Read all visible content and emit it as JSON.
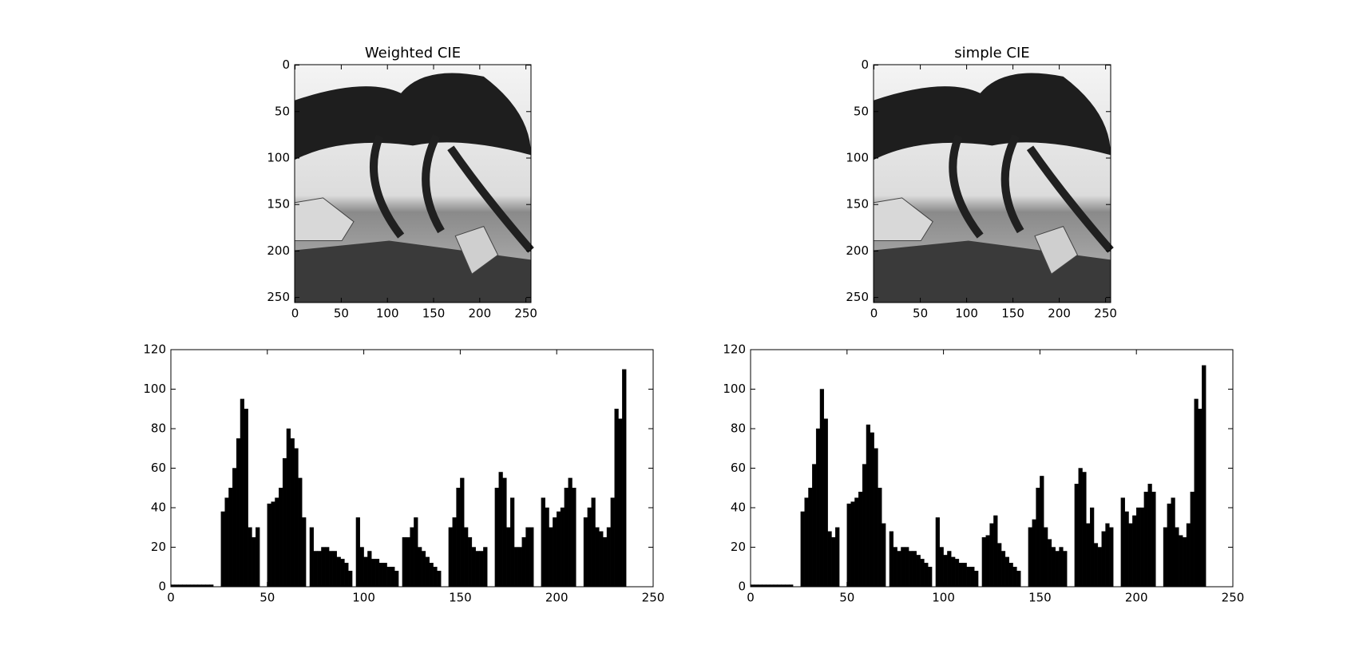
{
  "chart_data": [
    {
      "type": "image",
      "title": "Weighted CIE",
      "xlim": [
        -0.5,
        255.5
      ],
      "ylim": [
        255.5,
        -0.5
      ],
      "xticks": [
        0,
        50,
        100,
        150,
        200,
        250
      ],
      "yticks": [
        0,
        50,
        100,
        150,
        200,
        250
      ]
    },
    {
      "type": "image",
      "title": "simple CIE",
      "xlim": [
        -0.5,
        255.5
      ],
      "ylim": [
        255.5,
        -0.5
      ],
      "xticks": [
        0,
        50,
        100,
        150,
        200,
        250
      ],
      "yticks": [
        0,
        50,
        100,
        150,
        200,
        250
      ]
    },
    {
      "type": "histogram",
      "color": "#000000",
      "bins": [
        0,
        2,
        4,
        6,
        8,
        10,
        12,
        14,
        16,
        18,
        20,
        22,
        24,
        26,
        28,
        30,
        32,
        34,
        36,
        38,
        40,
        42,
        44,
        46,
        48,
        50,
        52,
        54,
        56,
        58,
        60,
        62,
        64,
        66,
        68,
        70,
        72,
        74,
        76,
        78,
        80,
        82,
        84,
        86,
        88,
        90,
        92,
        94,
        96,
        98,
        100,
        102,
        104,
        106,
        108,
        110,
        112,
        114,
        116,
        118,
        120,
        122,
        124,
        126,
        128,
        130,
        132,
        134,
        136,
        138,
        140,
        142,
        144,
        146,
        148,
        150,
        152,
        154,
        156,
        158,
        160,
        162,
        164,
        166,
        168,
        170,
        172,
        174,
        176,
        178,
        180,
        182,
        184,
        186,
        188,
        190,
        192,
        194,
        196,
        198,
        200,
        202,
        204,
        206,
        208,
        210,
        212,
        214,
        216,
        218,
        220,
        222,
        224,
        226,
        228,
        230,
        232,
        234,
        236
      ],
      "values": [
        1,
        1,
        1,
        1,
        1,
        1,
        1,
        1,
        1,
        1,
        1,
        0,
        0,
        38,
        45,
        50,
        60,
        75,
        95,
        90,
        30,
        25,
        30,
        0,
        0,
        42,
        43,
        45,
        50,
        65,
        80,
        75,
        70,
        55,
        35,
        0,
        30,
        18,
        18,
        20,
        20,
        18,
        18,
        15,
        14,
        12,
        8,
        0,
        35,
        20,
        15,
        18,
        14,
        14,
        12,
        12,
        10,
        10,
        8,
        0,
        25,
        25,
        30,
        35,
        20,
        18,
        15,
        12,
        10,
        8,
        0,
        0,
        30,
        35,
        50,
        55,
        30,
        25,
        20,
        18,
        18,
        20,
        0,
        0,
        50,
        58,
        55,
        30,
        45,
        20,
        20,
        25,
        30,
        30,
        0,
        0,
        45,
        40,
        30,
        35,
        38,
        40,
        50,
        55,
        50,
        0,
        0,
        35,
        40,
        45,
        30,
        28,
        25,
        30,
        45,
        90,
        85,
        110
      ],
      "xlim": [
        0,
        250
      ],
      "ylim": [
        0,
        120
      ],
      "xticks": [
        0,
        50,
        100,
        150,
        200,
        250
      ],
      "yticks": [
        0,
        20,
        40,
        60,
        80,
        100,
        120
      ]
    },
    {
      "type": "histogram",
      "color": "#000000",
      "bins": [
        0,
        2,
        4,
        6,
        8,
        10,
        12,
        14,
        16,
        18,
        20,
        22,
        24,
        26,
        28,
        30,
        32,
        34,
        36,
        38,
        40,
        42,
        44,
        46,
        48,
        50,
        52,
        54,
        56,
        58,
        60,
        62,
        64,
        66,
        68,
        70,
        72,
        74,
        76,
        78,
        80,
        82,
        84,
        86,
        88,
        90,
        92,
        94,
        96,
        98,
        100,
        102,
        104,
        106,
        108,
        110,
        112,
        114,
        116,
        118,
        120,
        122,
        124,
        126,
        128,
        130,
        132,
        134,
        136,
        138,
        140,
        142,
        144,
        146,
        148,
        150,
        152,
        154,
        156,
        158,
        160,
        162,
        164,
        166,
        168,
        170,
        172,
        174,
        176,
        178,
        180,
        182,
        184,
        186,
        188,
        190,
        192,
        194,
        196,
        198,
        200,
        202,
        204,
        206,
        208,
        210,
        212,
        214,
        216,
        218,
        220,
        222,
        224,
        226,
        228,
        230,
        232,
        234,
        236
      ],
      "values": [
        1,
        1,
        1,
        1,
        1,
        1,
        1,
        1,
        1,
        1,
        1,
        0,
        0,
        38,
        45,
        50,
        62,
        80,
        100,
        85,
        28,
        25,
        30,
        0,
        0,
        42,
        43,
        45,
        48,
        62,
        82,
        78,
        70,
        50,
        32,
        0,
        28,
        20,
        18,
        20,
        20,
        18,
        18,
        16,
        14,
        12,
        10,
        0,
        35,
        20,
        16,
        18,
        15,
        14,
        12,
        12,
        10,
        10,
        8,
        0,
        25,
        26,
        32,
        36,
        22,
        18,
        15,
        12,
        10,
        8,
        0,
        0,
        30,
        34,
        50,
        56,
        30,
        24,
        20,
        18,
        20,
        18,
        0,
        0,
        52,
        60,
        58,
        32,
        40,
        22,
        20,
        28,
        32,
        30,
        0,
        0,
        45,
        38,
        32,
        36,
        40,
        40,
        48,
        52,
        48,
        0,
        0,
        30,
        42,
        45,
        30,
        26,
        25,
        32,
        48,
        95,
        90,
        112
      ],
      "xlim": [
        0,
        250
      ],
      "ylim": [
        0,
        120
      ],
      "xticks": [
        0,
        50,
        100,
        150,
        200,
        250
      ],
      "yticks": [
        0,
        20,
        40,
        60,
        80,
        100,
        120
      ]
    }
  ]
}
